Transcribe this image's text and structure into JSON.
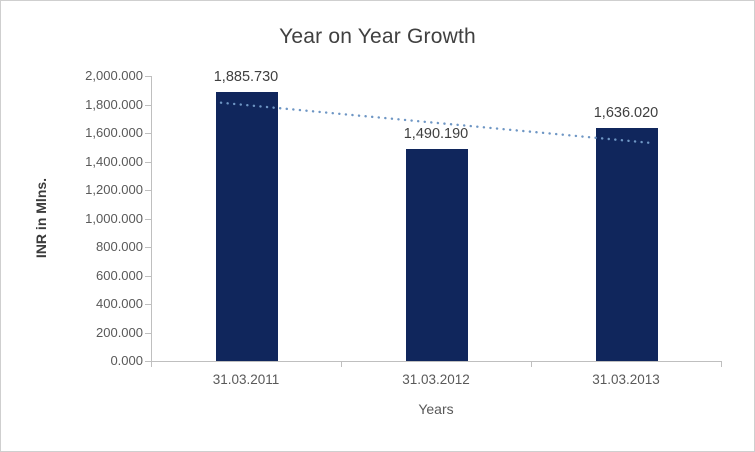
{
  "chart_data": {
    "type": "bar",
    "title": "Year on Year Growth",
    "categories": [
      "31.03.2011",
      "31.03.2012",
      "31.03.2013"
    ],
    "values": [
      1885.73,
      1490.19,
      1636.02
    ],
    "data_labels": [
      "1,885.730",
      "1,490.190",
      "1,636.020"
    ],
    "xlabel": "Years",
    "ylabel": "INR in Mlns.",
    "ylim": [
      0,
      2000
    ],
    "ytick_step": 200,
    "ytick_labels": [
      "0.000",
      "200.000",
      "400.000",
      "600.000",
      "800.000",
      "1,000.000",
      "1,200.000",
      "1,400.000",
      "1,600.000",
      "1,800.000",
      "2,000.000"
    ],
    "grid": false,
    "legend": "none",
    "bar_color": "#10265c",
    "axis_color": "#bfbfbf",
    "trendline": {
      "type": "linear",
      "style": "dotted",
      "color": "#6e96c4",
      "start_value": 1795.5,
      "end_value": 1545.9
    }
  }
}
